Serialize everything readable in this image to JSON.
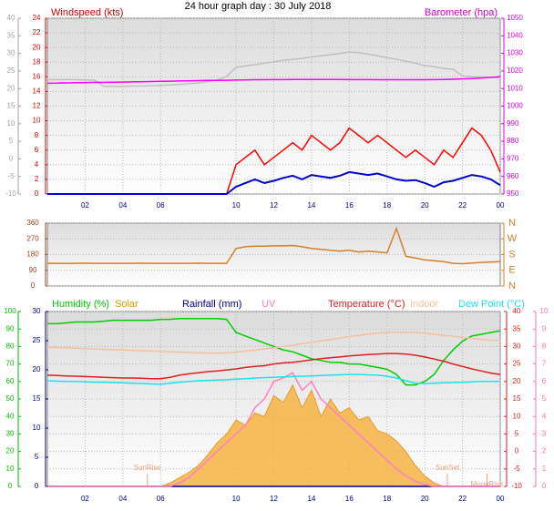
{
  "chart_data": [
    {
      "type": "line",
      "title": "24 hour graph day : 30 July 2018",
      "y_label": "Windspeed (kts)",
      "y2_label": "Barometer (hpa)",
      "x": [
        0,
        0.5,
        1,
        1.5,
        2,
        2.5,
        3,
        3.5,
        4,
        4.5,
        5,
        5.5,
        6,
        6.5,
        7,
        7.5,
        8,
        8.5,
        9,
        9.5,
        10,
        10.5,
        11,
        11.5,
        12,
        12.5,
        13,
        13.5,
        14,
        14.5,
        15,
        15.5,
        16,
        16.5,
        17,
        17.5,
        18,
        18.5,
        19,
        19.5,
        20,
        20.5,
        21,
        21.5,
        22,
        22.5,
        23,
        23.5,
        24
      ],
      "xlim": [
        0,
        24
      ],
      "xticks": [
        {
          "value": 2,
          "label": "02"
        },
        {
          "value": 4,
          "label": "04"
        },
        {
          "value": 6,
          "label": "06"
        },
        10,
        12,
        14,
        16,
        18,
        20,
        22,
        {
          "value": 24,
          "label": "00"
        }
      ],
      "ylim": [
        0,
        24
      ],
      "yticks": [
        0,
        2,
        4,
        6,
        8,
        10,
        12,
        14,
        16,
        18,
        20,
        22,
        24
      ],
      "y2lim": [
        950,
        1050
      ],
      "y2ticks": [
        950,
        960,
        970,
        980,
        990,
        1000,
        1010,
        1020,
        1030,
        1040,
        1050
      ],
      "y3lim": [
        -10,
        40
      ],
      "y3ticks": [
        -10,
        -5,
        0,
        5,
        10,
        15,
        20,
        25,
        30,
        35,
        40
      ],
      "grid": true,
      "series": [
        {
          "color": "#c0c0c0",
          "axis": "y3",
          "values": [
            22.5,
            22.5,
            22.6,
            22.5,
            22.4,
            22.4,
            20.6,
            20.6,
            20.6,
            20.7,
            20.7,
            20.8,
            20.9,
            21.0,
            21.2,
            21.4,
            21.6,
            22.0,
            22.4,
            23.5,
            26.0,
            26.4,
            26.8,
            27.2,
            27.6,
            28.0,
            28.3,
            28.6,
            29.0,
            29.3,
            29.6,
            30.0,
            30.4,
            30.2,
            29.8,
            29.3,
            28.8,
            28.3,
            27.8,
            27.2,
            26.5,
            26.2,
            25.7,
            25.5,
            23.6,
            23.4,
            23.3,
            23.2,
            23.1
          ]
        },
        {
          "color": "#ff00ff",
          "axis": "y2",
          "values": [
            1013.0,
            1013.1,
            1013.2,
            1013.3,
            1013.4,
            1013.5,
            1013.5,
            1013.6,
            1013.7,
            1013.8,
            1013.9,
            1014.0,
            1014.1,
            1014.2,
            1014.3,
            1014.4,
            1014.5,
            1014.6,
            1014.6,
            1014.7,
            1014.8,
            1014.9,
            1015,
            1015,
            1015.1,
            1015.1,
            1015.2,
            1015.2,
            1015.2,
            1015.2,
            1015.2,
            1015.2,
            1015.1,
            1015.1,
            1015.1,
            1015,
            1015,
            1015,
            1015,
            1015,
            1015,
            1015.1,
            1015.2,
            1015.3,
            1015.5,
            1015.7,
            1016,
            1016.3,
            1016.7
          ]
        },
        {
          "color": "#ff0000",
          "values": [
            0,
            0,
            0,
            0,
            0,
            0,
            0,
            0,
            0,
            0,
            0,
            0,
            0,
            0,
            0,
            0,
            0,
            0,
            0,
            0,
            4,
            5,
            6,
            4,
            5,
            6,
            7,
            6,
            8,
            7,
            6,
            7,
            9,
            8,
            7,
            8,
            7,
            6,
            5,
            6,
            5,
            4,
            6,
            5,
            7,
            9,
            8,
            6,
            3
          ]
        },
        {
          "color": "#0000cc",
          "values": [
            0,
            0,
            0,
            0,
            0,
            0,
            0,
            0,
            0,
            0,
            0,
            0,
            0,
            0,
            0,
            0,
            0,
            0,
            0,
            0,
            1,
            1.5,
            2,
            1.5,
            1.8,
            2.2,
            2.5,
            2,
            2.6,
            2.4,
            2.2,
            2.5,
            3,
            2.8,
            2.6,
            2.8,
            2.4,
            2,
            1.8,
            1.9,
            1.5,
            1,
            1.6,
            1.8,
            2.2,
            2.6,
            2.4,
            2,
            1.2
          ]
        }
      ]
    },
    {
      "type": "line",
      "x": [
        0,
        0.5,
        1,
        1.5,
        2,
        2.5,
        3,
        3.5,
        4,
        4.5,
        5,
        5.5,
        6,
        6.5,
        7,
        7.5,
        8,
        8.5,
        9,
        9.5,
        10,
        10.5,
        11,
        11.5,
        12,
        12.5,
        13,
        13.5,
        14,
        14.5,
        15,
        15.5,
        16,
        16.5,
        17,
        17.5,
        18,
        18.5,
        19,
        19.5,
        20,
        20.5,
        21,
        21.5,
        22,
        22.5,
        23,
        23.5,
        24
      ],
      "xlim": [
        0,
        24
      ],
      "ylim": [
        0,
        360
      ],
      "yticks": [
        0,
        90,
        180,
        270,
        360
      ],
      "y2lim": [
        0,
        360
      ],
      "y2ticks": [
        {
          "value": 0,
          "label": "N"
        },
        {
          "value": 90,
          "label": "E"
        },
        {
          "value": 180,
          "label": "S"
        },
        {
          "value": 270,
          "label": "W"
        },
        {
          "value": 360,
          "label": "N"
        }
      ],
      "grid": true,
      "series": [
        {
          "color": "#d2802a",
          "values": [
            130,
            130,
            129,
            130,
            131,
            130,
            130,
            130,
            130,
            130,
            131,
            130,
            130,
            130,
            130,
            130,
            131,
            130,
            130,
            130,
            215,
            225,
            228,
            228,
            230,
            230,
            232,
            225,
            215,
            210,
            205,
            200,
            205,
            195,
            200,
            195,
            190,
            330,
            170,
            160,
            150,
            145,
            140,
            130,
            128,
            132,
            135,
            138,
            140
          ]
        }
      ]
    },
    {
      "type": "line",
      "x": [
        0,
        0.5,
        1,
        1.5,
        2,
        2.5,
        3,
        3.5,
        4,
        4.5,
        5,
        5.5,
        6,
        6.5,
        7,
        7.5,
        8,
        8.5,
        9,
        9.5,
        10,
        10.5,
        11,
        11.5,
        12,
        12.5,
        13,
        13.5,
        14,
        14.5,
        15,
        15.5,
        16,
        16.5,
        17,
        17.5,
        18,
        18.5,
        19,
        19.5,
        20,
        20.5,
        21,
        21.5,
        22,
        22.5,
        23,
        23.5,
        24
      ],
      "xlim": [
        0,
        24
      ],
      "xticks": [
        {
          "value": 2,
          "label": "02"
        },
        {
          "value": 4,
          "label": "04"
        },
        {
          "value": 6,
          "label": "06"
        },
        10,
        12,
        14,
        16,
        18,
        20,
        22,
        {
          "value": 24,
          "label": "00"
        }
      ],
      "ylim": [
        0,
        100
      ],
      "yticks": [
        0,
        10,
        20,
        30,
        40,
        50,
        60,
        70,
        80,
        90,
        100
      ],
      "y2lim": [
        -10,
        40
      ],
      "y2ticks": [
        -10,
        -5,
        0,
        5,
        10,
        15,
        20,
        25,
        30,
        35,
        40
      ],
      "y3lim": [
        0,
        30
      ],
      "y3ticks": [
        0,
        5,
        10,
        15,
        20,
        25,
        30
      ],
      "y4lim": [
        0,
        10
      ],
      "y4ticks": [
        0,
        1,
        2,
        3,
        4,
        5,
        6,
        7,
        8,
        9,
        10
      ],
      "grid": true,
      "annotations": [
        {
          "text": "SunRise",
          "x": 5.3
        },
        {
          "text": "SunSet",
          "x": 21.2
        },
        {
          "text": "MoonRise",
          "x": 23.3
        }
      ],
      "series": [
        {
          "name": "Humidity (%)",
          "color": "#00cc00",
          "values": [
            93,
            93,
            93.5,
            94,
            94,
            94,
            94.5,
            95,
            95,
            95,
            95,
            95,
            95.5,
            95.5,
            96,
            96,
            96,
            96,
            96,
            95.5,
            88,
            86,
            84,
            82,
            80,
            78,
            77,
            75,
            73,
            72,
            71,
            71,
            70,
            70,
            69,
            68,
            67,
            64,
            58,
            58,
            60,
            64,
            72,
            78,
            83,
            86,
            87,
            88,
            89
          ]
        },
        {
          "name": "Solar",
          "color": "#f5b342",
          "fill": true,
          "values": [
            0,
            0,
            0,
            0,
            0,
            0,
            0,
            0,
            0,
            0,
            0,
            0,
            0,
            2,
            5,
            8,
            12,
            18,
            25,
            30,
            38,
            35,
            42,
            40,
            52,
            48,
            58,
            45,
            55,
            40,
            50,
            42,
            45,
            38,
            40,
            32,
            30,
            26,
            20,
            12,
            6,
            2,
            0,
            0,
            0,
            0,
            0,
            0,
            0
          ]
        },
        {
          "name": "Rainfall (mm)",
          "color": "#000080",
          "axis": "y3",
          "values": [
            0,
            0,
            0,
            0,
            0,
            0,
            0,
            0,
            0,
            0,
            0,
            0,
            0,
            0,
            0,
            0,
            0,
            0,
            0,
            0,
            0,
            0,
            0,
            0,
            0,
            0,
            0,
            0,
            0,
            0,
            0,
            0,
            0,
            0,
            0,
            0,
            0,
            0,
            0,
            0,
            0,
            0,
            0,
            0,
            0,
            0,
            0,
            0,
            0
          ]
        },
        {
          "name": "UV",
          "color": "#ff80c0",
          "axis": "y4",
          "values": [
            0,
            0,
            0,
            0,
            0,
            0,
            0,
            0,
            0,
            0,
            0,
            0,
            0,
            0,
            0.2,
            0.5,
            1,
            1.5,
            2,
            2.5,
            3,
            3.5,
            4.5,
            5,
            6,
            6.2,
            6.5,
            5.5,
            6,
            5,
            4.5,
            4,
            3.5,
            3,
            2.5,
            2,
            1.5,
            1,
            0.6,
            0.3,
            0.1,
            0,
            0,
            0,
            0,
            0,
            0,
            0,
            0
          ]
        },
        {
          "name": "Temperature (°C)",
          "color": "#dd2020",
          "axis": "y2",
          "values": [
            21.8,
            21.7,
            21.6,
            21.5,
            21.4,
            21.3,
            21.2,
            21.1,
            21,
            21,
            20.9,
            20.8,
            20.8,
            21.2,
            21.8,
            22.2,
            22.5,
            22.8,
            23,
            23.3,
            23.6,
            24,
            24.3,
            24.5,
            25,
            25.3,
            25.5,
            25.8,
            26.2,
            26.5,
            26.8,
            27,
            27.3,
            27.5,
            27.7,
            27.8,
            28,
            28,
            27.8,
            27.5,
            27,
            26.4,
            25.8,
            25,
            24.3,
            23.6,
            23,
            22.4,
            22
          ]
        },
        {
          "name": "Indoor",
          "color": "#f5c0a0",
          "axis": "y2",
          "values": [
            29.8,
            29.7,
            29.6,
            29.5,
            29.4,
            29.3,
            29.2,
            29.1,
            29,
            28.9,
            28.8,
            28.7,
            28.6,
            28.5,
            28.4,
            28.3,
            28.2,
            28.1,
            28.1,
            28.2,
            28.4,
            28.7,
            29,
            29.3,
            29.6,
            30,
            30.4,
            30.8,
            31.2,
            31.6,
            32,
            32.4,
            32.8,
            33.2,
            33.5,
            33.8,
            34,
            34.1,
            34.1,
            34,
            33.8,
            33.5,
            33.2,
            32.9,
            32.6,
            32.3,
            32,
            31.8,
            31.7
          ]
        },
        {
          "name": "Dew Point (°C)",
          "color": "#20e0f0",
          "axis": "y2",
          "values": [
            20.2,
            20.1,
            20,
            20,
            19.9,
            19.8,
            19.8,
            19.7,
            19.6,
            19.5,
            19.4,
            19.3,
            19.2,
            19.5,
            19.8,
            20,
            20.2,
            20.3,
            20.4,
            20.5,
            20.7,
            20.8,
            21,
            21.1,
            21.2,
            21.3,
            21.4,
            21.5,
            21.6,
            21.7,
            21.8,
            21.9,
            22,
            22,
            21.9,
            21.8,
            21.5,
            21,
            20.2,
            19.5,
            19.4,
            19.5,
            19.6,
            19.7,
            19.8,
            19.9,
            20,
            20,
            20
          ]
        }
      ]
    }
  ]
}
